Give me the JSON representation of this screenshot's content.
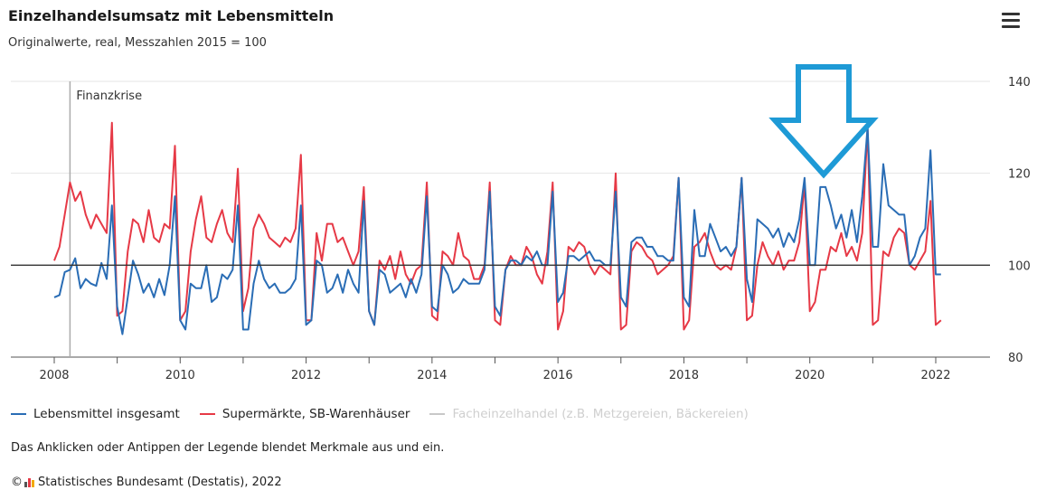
{
  "chart_data": {
    "type": "line",
    "title": "Einzelhandelsumsatz mit Lebensmitteln",
    "subtitle": "Originalwerte, real, Messzahlen 2015 = 100",
    "xlim": [
      2008,
      2022.4
    ],
    "ylim": [
      80,
      140
    ],
    "x_ticks": [
      2008,
      2010,
      2012,
      2014,
      2016,
      2018,
      2020,
      2022
    ],
    "y_ticks": [
      80,
      100,
      120,
      140
    ],
    "reference_line": 100,
    "annotation": {
      "label": "Finanzkrise",
      "x": 2008.25
    },
    "series": [
      {
        "name": "Lebensmittel insgesamt",
        "color": "#2a6db5",
        "start": 2008.0,
        "step_months": 1,
        "values": [
          93,
          93.5,
          98.5,
          99,
          101.5,
          95,
          97,
          96,
          95.5,
          100.5,
          97,
          113,
          91,
          85,
          93,
          101,
          98,
          94,
          96,
          93,
          97,
          93.5,
          100,
          115,
          88,
          86,
          96,
          95,
          95,
          100,
          92,
          93,
          98,
          97,
          99,
          113,
          86,
          86,
          96,
          101,
          97,
          95,
          96,
          94,
          94,
          95,
          97,
          113,
          87,
          88,
          101,
          100,
          94,
          95,
          98,
          94,
          99,
          96,
          94,
          114,
          90,
          87,
          99,
          98,
          94,
          95,
          96,
          93,
          97,
          94,
          98,
          115,
          91,
          90,
          100,
          98,
          94,
          95,
          97,
          96,
          96,
          96,
          99,
          116,
          91,
          89,
          99,
          101,
          101,
          100,
          102,
          101,
          103,
          100,
          100,
          116,
          92,
          94,
          102,
          102,
          101,
          102,
          103,
          101,
          101,
          100,
          100,
          116,
          93,
          91,
          105,
          106,
          106,
          104,
          104,
          102,
          102,
          101,
          101,
          119,
          93,
          91,
          112,
          102,
          102,
          109,
          106,
          103,
          104,
          102,
          104,
          119,
          97,
          92,
          110,
          109,
          108,
          106,
          108,
          104,
          107,
          105,
          110,
          119,
          100,
          100,
          117,
          117,
          113,
          108,
          111,
          106,
          112,
          105,
          115,
          130,
          104,
          104,
          122,
          113,
          112,
          111,
          111,
          100,
          102,
          106,
          108,
          125,
          98,
          98
        ]
      },
      {
        "name": "Supermärkte, SB-Warenhäuser",
        "color": "#e63946",
        "start": 2008.0,
        "step_months": 1,
        "values": [
          101,
          104,
          111,
          118,
          114,
          116,
          111,
          108,
          111,
          109,
          107,
          131,
          89,
          90,
          103,
          110,
          109,
          105,
          112,
          106,
          105,
          109,
          108,
          126,
          88,
          90,
          103,
          110,
          115,
          106,
          105,
          109,
          112,
          107,
          105,
          121,
          90,
          95,
          108,
          111,
          109,
          106,
          105,
          104,
          106,
          105,
          108,
          124,
          88,
          88,
          107,
          101,
          109,
          109,
          105,
          106,
          103,
          100,
          103,
          117,
          90,
          87,
          101,
          99,
          102,
          97,
          103,
          98,
          96,
          99,
          100,
          118,
          89,
          88,
          103,
          102,
          100,
          107,
          102,
          101,
          97,
          97,
          100,
          118,
          88,
          87,
          99,
          102,
          100,
          100,
          104,
          102,
          98,
          96,
          103,
          118,
          86,
          90,
          104,
          103,
          105,
          104,
          100,
          98,
          100,
          99,
          98,
          120,
          86,
          87,
          103,
          105,
          104,
          102,
          101,
          98,
          99,
          100,
          102,
          119,
          86,
          88,
          104,
          105,
          107,
          103,
          100,
          99,
          100,
          99,
          104,
          119,
          88,
          89,
          100,
          105,
          102,
          100,
          103,
          99,
          101,
          101,
          105,
          118,
          90,
          92,
          99,
          99,
          104,
          103,
          107,
          102,
          104,
          101,
          107,
          130,
          87,
          88,
          103,
          102,
          106,
          108,
          107,
          100,
          99,
          101,
          103,
          114,
          87,
          88
        ]
      },
      {
        "name": "Facheinzelhandel (z.B. Metzgereien, Bäckereien)",
        "color": "#c8c8c8",
        "hidden": true,
        "values": []
      }
    ]
  },
  "legend_note": "Das Anklicken oder Antippen der Legende blendet Merkmale aus und ein.",
  "source": "Statistisches Bundesamt (Destatis), 2022",
  "copyright_symbol": "©",
  "arrow_color": "#1e9ad6"
}
